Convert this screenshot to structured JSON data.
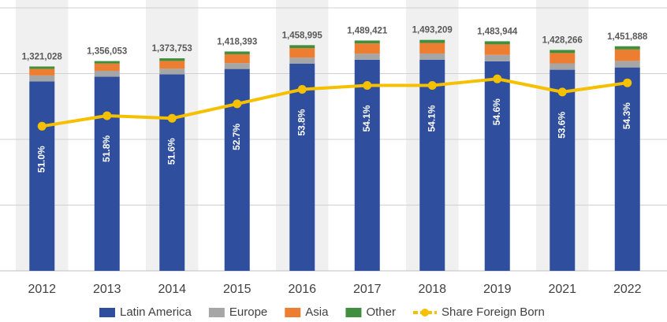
{
  "chart_data": {
    "type": "stacked_bar_line",
    "categories": [
      "2012",
      "2013",
      "2014",
      "2015",
      "2016",
      "2017",
      "2018",
      "2019",
      "2021",
      "2022"
    ],
    "series": [
      {
        "name": "Latin America",
        "color": "#2f4f9e",
        "values": [
          1225000,
          1255000,
          1270000,
          1305000,
          1340000,
          1365000,
          1365000,
          1355000,
          1300000,
          1315000
        ]
      },
      {
        "name": "Europe",
        "color": "#a6a6a6",
        "values": [
          38000,
          38000,
          37000,
          38000,
          38000,
          39000,
          40000,
          41000,
          41000,
          42000
        ]
      },
      {
        "name": "Asia",
        "color": "#ed7d31",
        "values": [
          43000,
          47000,
          50000,
          57000,
          62000,
          66000,
          68000,
          68000,
          67000,
          74000
        ]
      },
      {
        "name": "Other",
        "color": "#3f8f3f",
        "values": [
          15000,
          16000,
          17000,
          18000,
          19000,
          19000,
          20000,
          20000,
          20000,
          21000
        ]
      },
      {
        "name": "Share Foreign Born",
        "color": "#f5c000",
        "axis": "y2",
        "values": [
          51.0,
          51.8,
          51.6,
          52.7,
          53.8,
          54.1,
          54.1,
          54.6,
          53.6,
          54.3
        ],
        "value_labels": [
          "51.0%",
          "51.8%",
          "51.6%",
          "52.7%",
          "53.8%",
          "54.1%",
          "54.1%",
          "54.6%",
          "53.6%",
          "54.3%"
        ]
      }
    ],
    "totals": [
      1321028,
      1356053,
      1373753,
      1418393,
      1458995,
      1489421,
      1493209,
      1483944,
      1428266,
      1451888
    ],
    "total_labels": [
      "1,321,028",
      "1,356,053",
      "1,373,753",
      "1,418,393",
      "1,458,995",
      "1,489,421",
      "1,493,209",
      "1,483,944",
      "1,428,266",
      "1,451,888"
    ],
    "ylim": [
      0,
      1700000
    ],
    "yticks": [
      0,
      425000,
      850000,
      1275000,
      1700000
    ],
    "y2lim": [
      40,
      60
    ],
    "grid": true
  }
}
